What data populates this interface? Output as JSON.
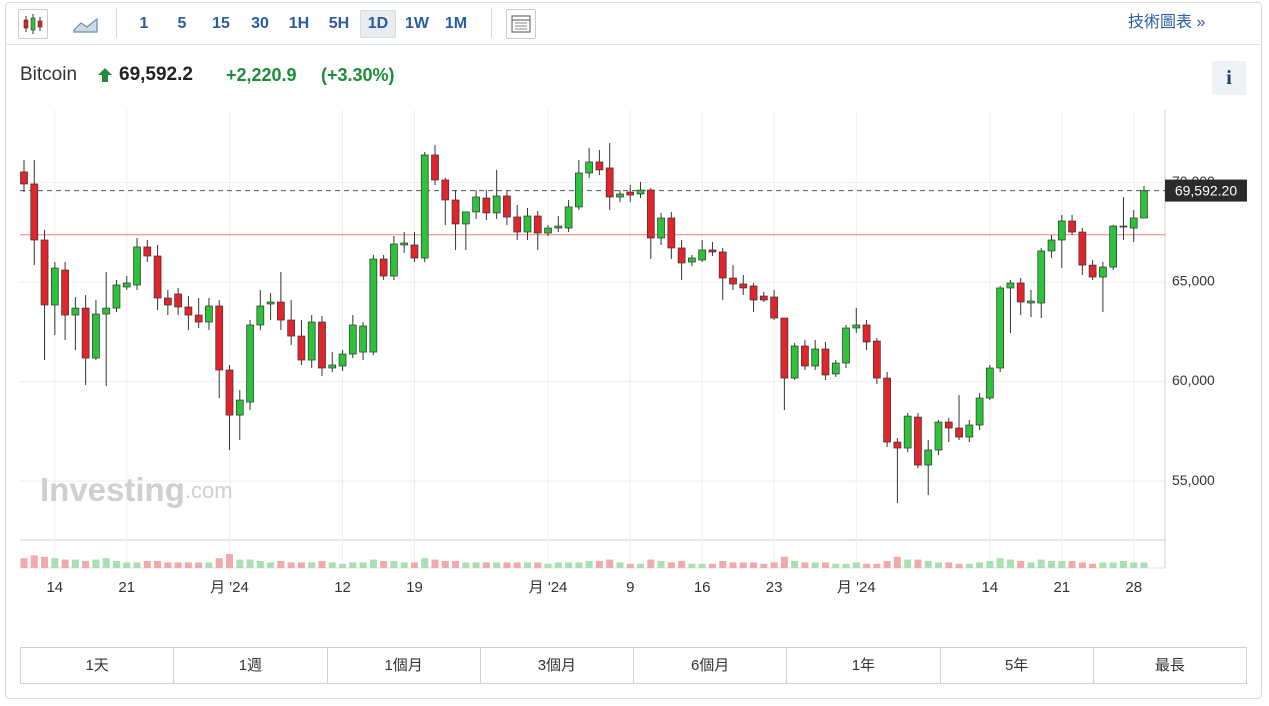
{
  "toolbar": {
    "intervals": [
      "1",
      "5",
      "15",
      "30",
      "1H",
      "5H",
      "1D",
      "1W",
      "1M"
    ],
    "selected_interval_index": 6,
    "technical_link": "技術圖表 »"
  },
  "header": {
    "name": "Bitcoin",
    "price": "69,592.2",
    "change": "+2,220.9",
    "change_pct": "(+3.30%)"
  },
  "info_button": "i",
  "watermark": {
    "brand": "Investing",
    "suffix": ".com"
  },
  "ranges": [
    "1天",
    "1週",
    "1個月",
    "3個月",
    "6個月",
    "1年",
    "5年",
    "最長"
  ],
  "chart_data": {
    "type": "candlestick",
    "categories": [
      null,
      null,
      null,
      "14",
      null,
      null,
      null,
      null,
      null,
      null,
      "21",
      null,
      null,
      null,
      null,
      null,
      null,
      null,
      null,
      null,
      "月 '24",
      null,
      null,
      null,
      null,
      null,
      null,
      null,
      null,
      null,
      null,
      "12",
      null,
      null,
      null,
      null,
      null,
      null,
      "19",
      null,
      null,
      null,
      null,
      null,
      null,
      null,
      null,
      null,
      null,
      null,
      null,
      "月 '24",
      null,
      null,
      null,
      null,
      null,
      null,
      null,
      "9",
      null,
      null,
      null,
      null,
      null,
      null,
      "16",
      null,
      null,
      null,
      null,
      null,
      null,
      "23",
      null,
      null,
      null,
      null,
      null,
      null,
      null,
      "月 '24",
      null,
      null,
      null,
      null,
      null,
      null,
      null,
      null,
      null,
      null,
      null,
      null,
      "14",
      null,
      null,
      null,
      null,
      null,
      null,
      "21",
      null,
      null,
      null,
      null,
      null,
      null,
      "28",
      null
    ],
    "open": [
      70530,
      69925,
      67110,
      63845,
      65600,
      63340,
      63690,
      61180,
      63390,
      63690,
      64750,
      64850,
      66760,
      66305,
      64195,
      64400,
      63745,
      63340,
      62990,
      63795,
      60580,
      58315,
      58970,
      62840,
      63895,
      63995,
      63090,
      62285,
      61080,
      62990,
      60680,
      60780,
      61380,
      61480,
      61480,
      66155,
      65300,
      66860,
      66860,
      66205,
      71380,
      70125,
      69120,
      67915,
      68520,
      69220,
      68470,
      69320,
      68265,
      67510,
      68315,
      67460,
      67710,
      67710,
      68770,
      70475,
      71030,
      70730,
      69270,
      69520,
      69420,
      69620,
      67210,
      68215,
      66710,
      66005,
      66105,
      66610,
      66510,
      65200,
      64900,
      64800,
      64295,
      64245,
      63190,
      60175,
      61785,
      60780,
      61635,
      60380,
      60930,
      62690,
      62840,
      62035,
      60175,
      56960,
      56660,
      58215,
      55805,
      56560,
      57965,
      57665,
      57210,
      57815,
      59170,
      60680,
      64700,
      64950,
      63945,
      63945,
      66560,
      67110,
      68065,
      67510,
      65850,
      65250,
      65750,
      67760,
      67710,
      68215
    ],
    "high": [
      71130,
      71130,
      67610,
      66000,
      66000,
      64245,
      64345,
      64095,
      65500,
      65100,
      65300,
      67210,
      67110,
      66860,
      64600,
      64700,
      64300,
      64195,
      64195,
      64095,
      60830,
      59570,
      63090,
      64600,
      64445,
      65500,
      64095,
      63090,
      63340,
      63290,
      61480,
      61580,
      63340,
      62990,
      66360,
      66360,
      67310,
      67510,
      67510,
      71530,
      71880,
      70230,
      69620,
      68520,
      69620,
      69620,
      70630,
      69620,
      68870,
      68720,
      68570,
      67860,
      68315,
      69120,
      71130,
      71730,
      71630,
      71980,
      69620,
      69870,
      70030,
      69720,
      68470,
      68520,
      67110,
      66360,
      67110,
      67010,
      66710,
      65850,
      65350,
      64950,
      64500,
      64600,
      63190,
      61935,
      62085,
      62085,
      61985,
      61080,
      62840,
      63690,
      63090,
      62185,
      60480,
      57160,
      58420,
      58420,
      57060,
      58070,
      58170,
      59320,
      58070,
      59420,
      60830,
      64800,
      65100,
      65200,
      64600,
      66710,
      67360,
      68370,
      68370,
      67710,
      66110,
      66010,
      67860,
      69270,
      68620,
      69820
    ],
    "low": [
      69520,
      65850,
      61080,
      62335,
      62085,
      61580,
      59825,
      61080,
      59775,
      63490,
      64600,
      64600,
      66005,
      63590,
      63340,
      63340,
      62590,
      62690,
      62590,
      59170,
      56560,
      57060,
      58570,
      62590,
      63090,
      62590,
      61835,
      60830,
      60680,
      60275,
      60480,
      60530,
      61180,
      61080,
      61330,
      65100,
      65100,
      66460,
      66005,
      66005,
      69870,
      67860,
      66610,
      66610,
      68170,
      68120,
      68170,
      67860,
      67110,
      67110,
      66610,
      67310,
      67510,
      67510,
      68620,
      70230,
      70375,
      68620,
      69020,
      69020,
      69220,
      66160,
      66860,
      66160,
      65100,
      65800,
      66005,
      66305,
      64095,
      64600,
      64350,
      63490,
      63995,
      63090,
      58570,
      60080,
      60580,
      60580,
      60080,
      60230,
      60680,
      62440,
      61580,
      59880,
      56710,
      53895,
      56460,
      55650,
      54300,
      56310,
      56960,
      57060,
      56960,
      57560,
      59070,
      60480,
      62435,
      63340,
      63240,
      63190,
      66210,
      65700,
      67360,
      65350,
      65100,
      63490,
      65600,
      67110,
      67010,
      68215
    ],
    "close": [
      69925,
      67110,
      63845,
      65700,
      63340,
      63690,
      61180,
      63390,
      63690,
      64850,
      64950,
      66760,
      66305,
      64195,
      63845,
      63745,
      63340,
      62990,
      63795,
      60580,
      58315,
      59070,
      62840,
      63795,
      63995,
      63090,
      62285,
      61080,
      62990,
      60680,
      60830,
      61380,
      62840,
      62790,
      66155,
      65300,
      66910,
      66960,
      66205,
      71380,
      70125,
      69120,
      67915,
      68520,
      69270,
      68470,
      69320,
      68265,
      67510,
      68315,
      67460,
      67710,
      67810,
      68770,
      70475,
      71030,
      70630,
      69270,
      69420,
      69370,
      69620,
      67210,
      68215,
      66710,
      65955,
      66205,
      66610,
      66510,
      65200,
      64900,
      64700,
      64095,
      64095,
      63190,
      60175,
      61785,
      60780,
      61635,
      60330,
      60930,
      62690,
      62840,
      61985,
      60175,
      56960,
      56660,
      58265,
      55805,
      56560,
      57965,
      57665,
      57210,
      57815,
      59170,
      60680,
      64700,
      64950,
      63995,
      64045,
      66560,
      67110,
      68065,
      67510,
      65850,
      65250,
      65750,
      67810,
      67810,
      68215,
      69592.2
    ],
    "volume": [
      7,
      9,
      8,
      7,
      6,
      6,
      5,
      6,
      7,
      5,
      4,
      4,
      5,
      5,
      4,
      4,
      4,
      4,
      4,
      7,
      10,
      6,
      6,
      5,
      4,
      5,
      4,
      4,
      4,
      5,
      4,
      3,
      4,
      4,
      6,
      5,
      5,
      4,
      4,
      7,
      6,
      5,
      5,
      4,
      4,
      4,
      4,
      4,
      4,
      4,
      4,
      3,
      4,
      4,
      4,
      5,
      5,
      6,
      4,
      3,
      3,
      6,
      5,
      4,
      5,
      3,
      3,
      3,
      5,
      4,
      4,
      4,
      3,
      4,
      8,
      5,
      4,
      4,
      4,
      3,
      3,
      4,
      3,
      3,
      5,
      8,
      6,
      6,
      5,
      4,
      4,
      3,
      3,
      4,
      5,
      7,
      6,
      5,
      4,
      6,
      5,
      5,
      5,
      4,
      3,
      4,
      4,
      5,
      4,
      4
    ],
    "volume_lim": [
      0,
      20
    ],
    "up_color": "#2ec13a",
    "down_color": "#e0252c",
    "volume_up_color": "#a9dfb3",
    "volume_down_color": "#f1a9ab",
    "ylim": [
      52040,
      73640
    ],
    "yticks": [
      {
        "value": 55000,
        "label": "55,000"
      },
      {
        "value": 60000,
        "label": "60,000"
      },
      {
        "value": 65000,
        "label": "65,000"
      },
      {
        "value": 70000,
        "label": "70,000"
      }
    ],
    "last_price": {
      "value": 69592.2,
      "label": "69,592.20"
    },
    "prev_close": 67371.3,
    "grid": true
  }
}
